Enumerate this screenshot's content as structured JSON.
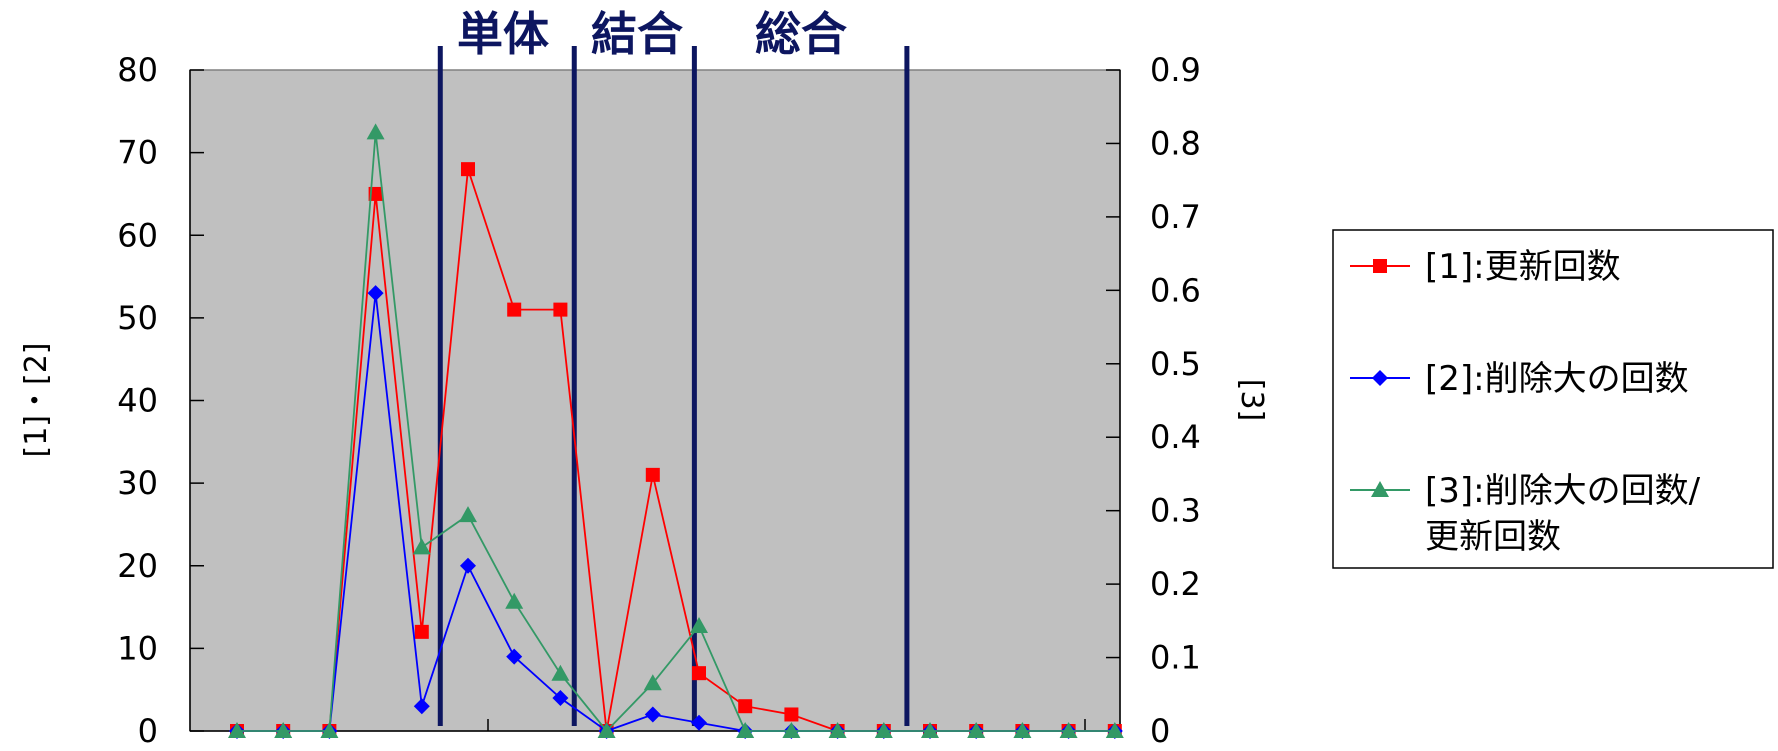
{
  "chart_data": {
    "type": "line",
    "x": [
      1,
      2,
      3,
      4,
      5,
      6,
      7,
      8,
      9,
      10,
      11,
      12,
      13,
      14,
      15,
      16,
      17,
      18,
      19,
      20
    ],
    "y_left": {
      "label": "[1]・[2]",
      "lim": [
        0,
        80
      ],
      "ticks": [
        "0",
        "10",
        "20",
        "30",
        "40",
        "50",
        "60",
        "70",
        "80"
      ]
    },
    "y_right": {
      "label": "[3]",
      "lim": [
        0,
        0.9
      ],
      "ticks": [
        "0",
        "0.1",
        "0.2",
        "0.3",
        "0.4",
        "0.5",
        "0.6",
        "0.7",
        "0.8",
        "0.9"
      ]
    },
    "series": [
      {
        "name": "[1]:更新回数",
        "axis": "left",
        "color": "#ff0000",
        "marker": "square",
        "values": [
          0,
          0,
          0,
          65,
          12,
          68,
          51,
          51,
          0,
          31,
          7,
          3,
          2,
          0,
          0,
          0,
          0,
          0,
          0,
          0
        ]
      },
      {
        "name": "[2]:削除大の回数",
        "axis": "left",
        "color": "#0000ff",
        "marker": "diamond",
        "values": [
          0,
          0,
          0,
          53,
          3,
          20,
          9,
          4,
          0,
          2,
          1,
          0,
          0,
          0,
          0,
          0,
          0,
          0,
          0,
          0
        ]
      },
      {
        "name_line1": "[3]:削除大の回数/",
        "name_line2": "更新回数",
        "axis": "right",
        "color": "#339966",
        "marker": "triangle",
        "values": [
          0,
          0,
          0,
          0.815,
          0.25,
          0.294,
          0.176,
          0.078,
          0,
          0.065,
          0.143,
          0,
          0,
          0,
          0,
          0,
          0,
          0,
          0,
          0
        ]
      }
    ],
    "phases": [
      "単体",
      "結合",
      "総合"
    ],
    "phase_boundaries_x": [
      5.4,
      8.3,
      10.9,
      15.5
    ],
    "grid": false,
    "plot_background": "#c0c0c0",
    "legend_position": "right"
  }
}
